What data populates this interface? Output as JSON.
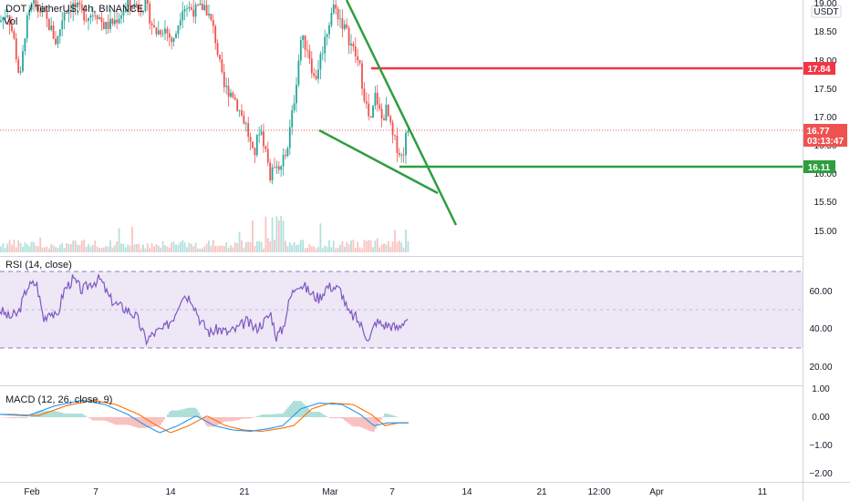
{
  "header": {
    "symbol_title": "DOT / TetherUS, 4h, BINANCE",
    "currency": "USDT",
    "volume_label": "Vol"
  },
  "badges": {
    "resistance": "17.84",
    "last_price": "16.77",
    "countdown": "03:13:47",
    "support": "16.11"
  },
  "colors": {
    "up": "#26a69a",
    "down": "#ef5350",
    "rsi_line": "#7e57c2",
    "rsi_band": "#ede7f6",
    "macd_line": "#2196f3",
    "signal_line": "#ff6d00",
    "trend_line": "#2e9e3e",
    "resistance_line": "#f23645"
  },
  "chart_data": [
    {
      "type": "candlestick",
      "pane": "price",
      "ylim": [
        14.75,
        19.1
      ],
      "y_ticks": [
        "19.00",
        "18.50",
        "18.00",
        "17.50",
        "17.00",
        "16.50",
        "16.00",
        "15.50",
        "15.00"
      ],
      "horizontal_levels": [
        17.84,
        16.11
      ],
      "last_price": 16.77,
      "trend_lines": [
        {
          "color": "green",
          "from": [
            380,
            19.05
          ],
          "to": [
            500,
            15.1
          ]
        },
        {
          "color": "green",
          "from": [
            350,
            16.78
          ],
          "to": [
            480,
            15.7
          ]
        }
      ]
    },
    {
      "type": "line",
      "pane": "rsi",
      "title": "RSI (14, close)",
      "y_ticks": [
        "60.00",
        "40.00",
        "20.00"
      ],
      "ylim": [
        12,
        75
      ],
      "bands": [
        70,
        30
      ]
    },
    {
      "type": "line",
      "pane": "macd",
      "title": "MACD (12, 26, close, 9)",
      "y_ticks": [
        "1.00",
        "0.00",
        "−1.00",
        "−2.00"
      ],
      "ylim": [
        -2.15,
        1.1
      ]
    }
  ],
  "x_axis": {
    "ticks": [
      {
        "label": "Feb",
        "x": 35
      },
      {
        "label": "7",
        "x": 105
      },
      {
        "label": "14",
        "x": 187
      },
      {
        "label": "21",
        "x": 268
      },
      {
        "label": "Mar",
        "x": 362
      },
      {
        "label": "7",
        "x": 430
      },
      {
        "label": "14",
        "x": 512
      },
      {
        "label": "21",
        "x": 594
      },
      {
        "label": "12:00",
        "x": 657
      },
      {
        "label": "Apr",
        "x": 720
      },
      {
        "label": "11",
        "x": 836
      }
    ]
  }
}
